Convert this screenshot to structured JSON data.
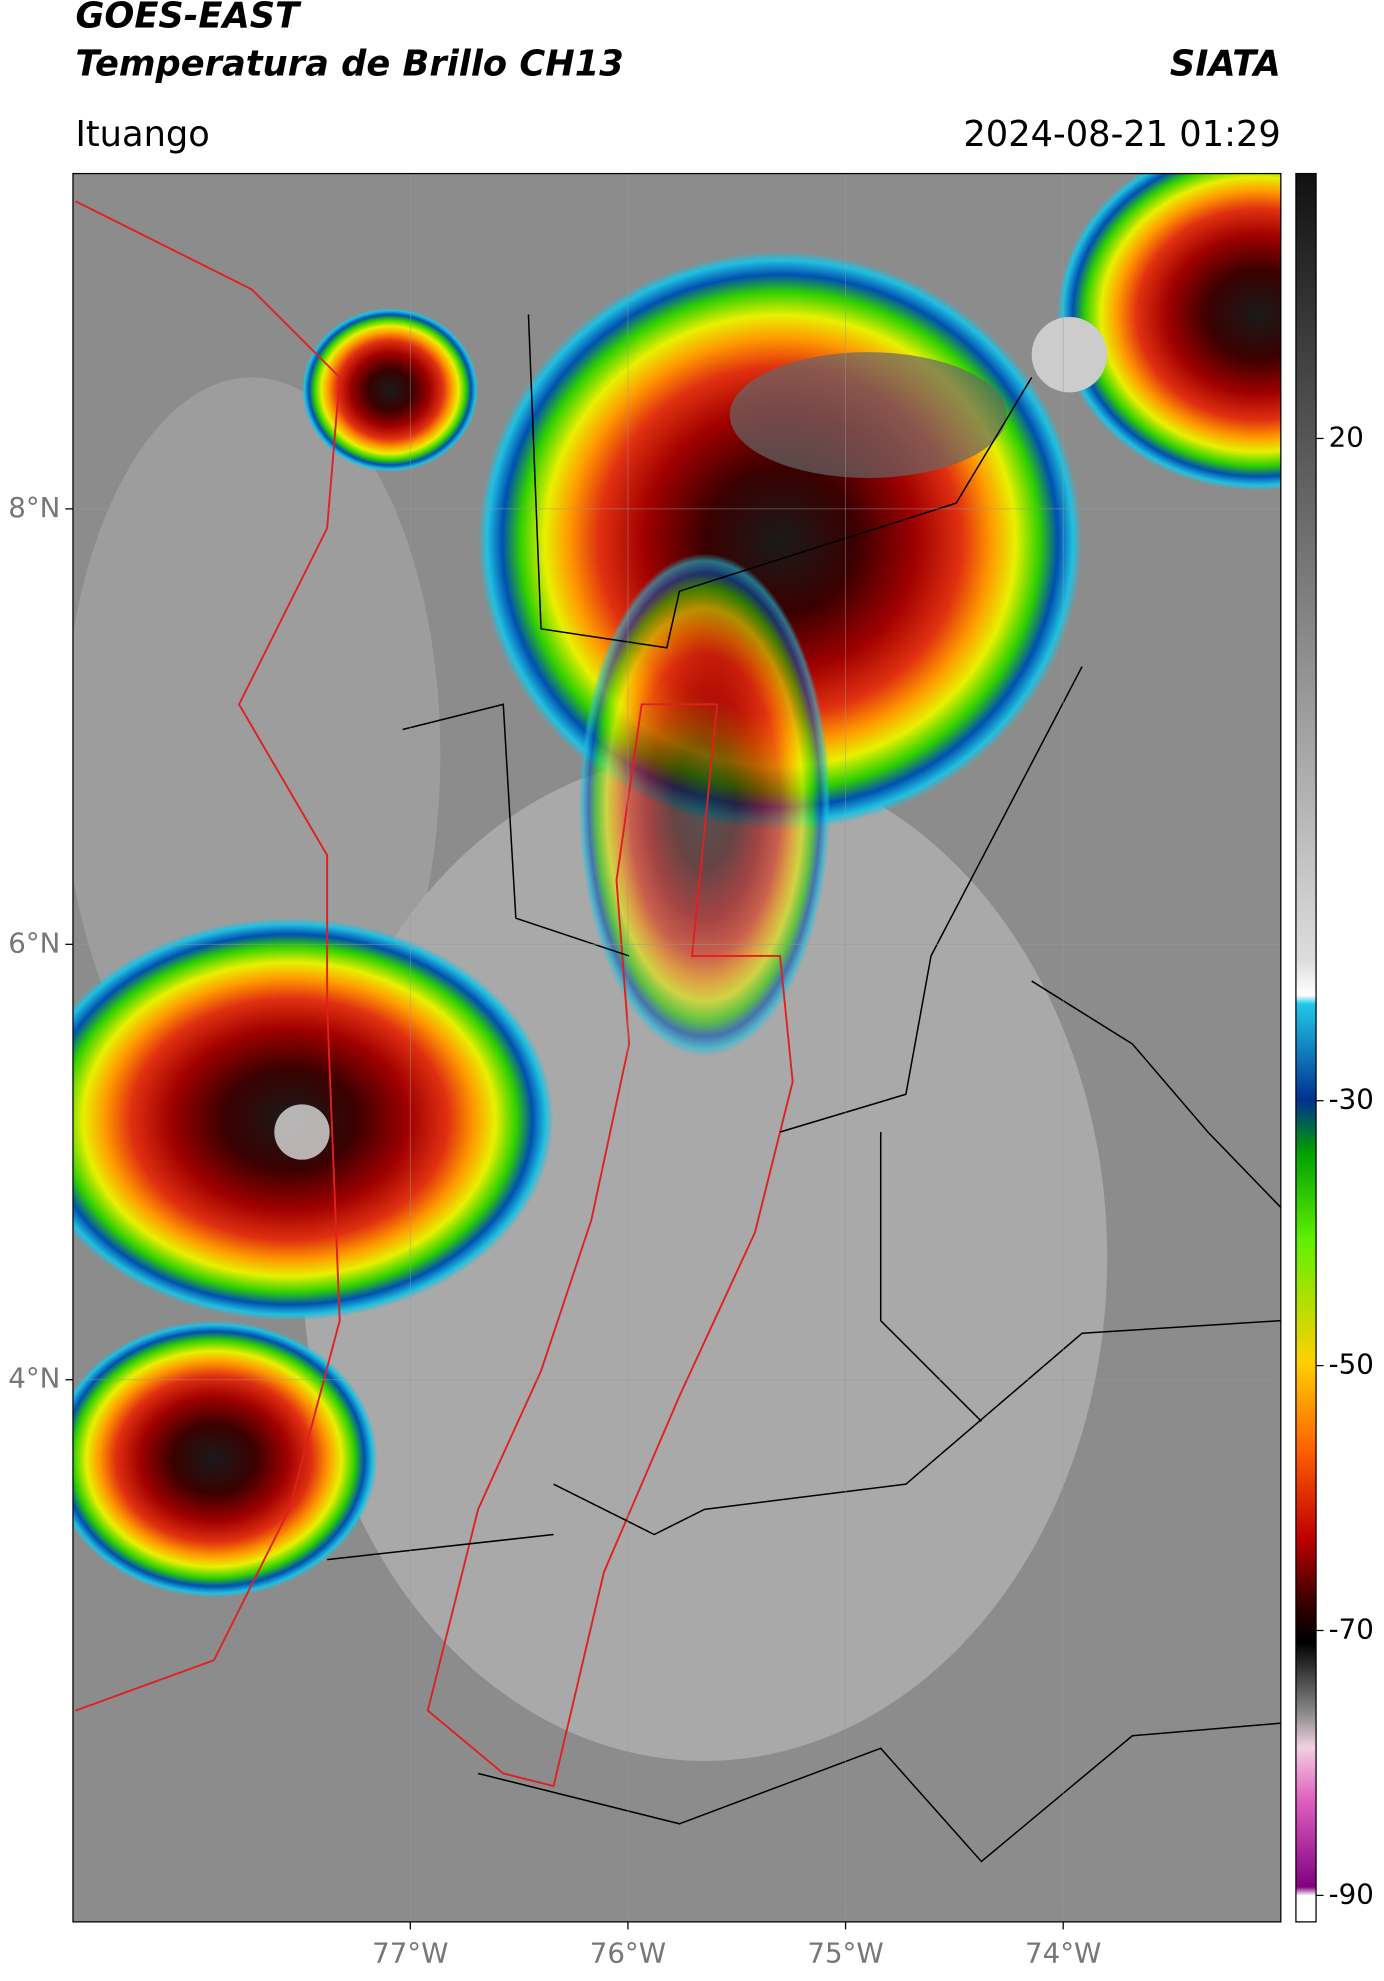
{
  "header": {
    "title": "GOES-EAST",
    "subtitle": "Temperatura de Brillo CH13",
    "source": "SIATA",
    "location": "Ituango",
    "datetime": "2024-08-21 01:29"
  },
  "map": {
    "xlim": [
      -78.55,
      -73.0
    ],
    "ylim": [
      1.51,
      9.54
    ],
    "xticks": [
      {
        "value": -77,
        "label": "77°W"
      },
      {
        "value": -76,
        "label": "76°W"
      },
      {
        "value": -75,
        "label": "75°W"
      },
      {
        "value": -74,
        "label": "74°W"
      }
    ],
    "yticks": [
      {
        "value": 8,
        "label": "8°N"
      },
      {
        "value": 6,
        "label": "6°N"
      },
      {
        "value": 4,
        "label": "4°N"
      }
    ],
    "grid": true
  },
  "colorbar": {
    "lim": [
      -92,
      40
    ],
    "ticks": [
      20,
      -30,
      -50,
      -70,
      -90
    ]
  }
}
